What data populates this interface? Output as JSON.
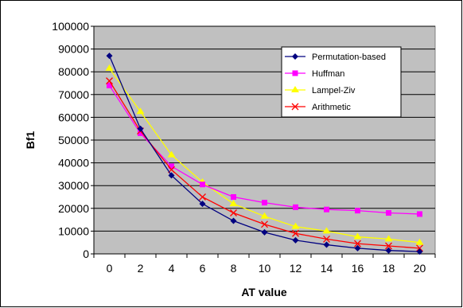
{
  "chart_data": {
    "type": "line",
    "title": "",
    "xlabel": "AT value",
    "ylabel": "Bf1",
    "x": [
      0,
      2,
      4,
      6,
      8,
      10,
      12,
      14,
      16,
      18,
      20
    ],
    "ylim": [
      0,
      100000
    ],
    "yticks": [
      0,
      10000,
      20000,
      30000,
      40000,
      50000,
      60000,
      70000,
      80000,
      90000,
      100000
    ],
    "grid": true,
    "plot_background": "#c0c0c0",
    "legend_position": "top-right",
    "series": [
      {
        "name": "Permutation-based",
        "color": "#000080",
        "marker": "diamond",
        "values": [
          87000,
          55000,
          34500,
          22000,
          14500,
          9500,
          6000,
          4000,
          2500,
          1500,
          1000
        ]
      },
      {
        "name": "Huffman",
        "color": "#ff00ff",
        "marker": "square",
        "values": [
          74000,
          53000,
          38500,
          30500,
          25000,
          22500,
          20500,
          19500,
          19000,
          18000,
          17500
        ]
      },
      {
        "name": "Lampel-Ziv",
        "color": "#ffff00",
        "marker": "triangle",
        "values": [
          81500,
          62500,
          43500,
          31500,
          22000,
          16500,
          12000,
          10000,
          7500,
          6500,
          5000
        ]
      },
      {
        "name": "Arithmetic",
        "color": "#ff0000",
        "marker": "x",
        "values": [
          76000,
          54000,
          37000,
          25000,
          18000,
          13000,
          9000,
          6500,
          4500,
          3500,
          2500
        ]
      }
    ]
  }
}
